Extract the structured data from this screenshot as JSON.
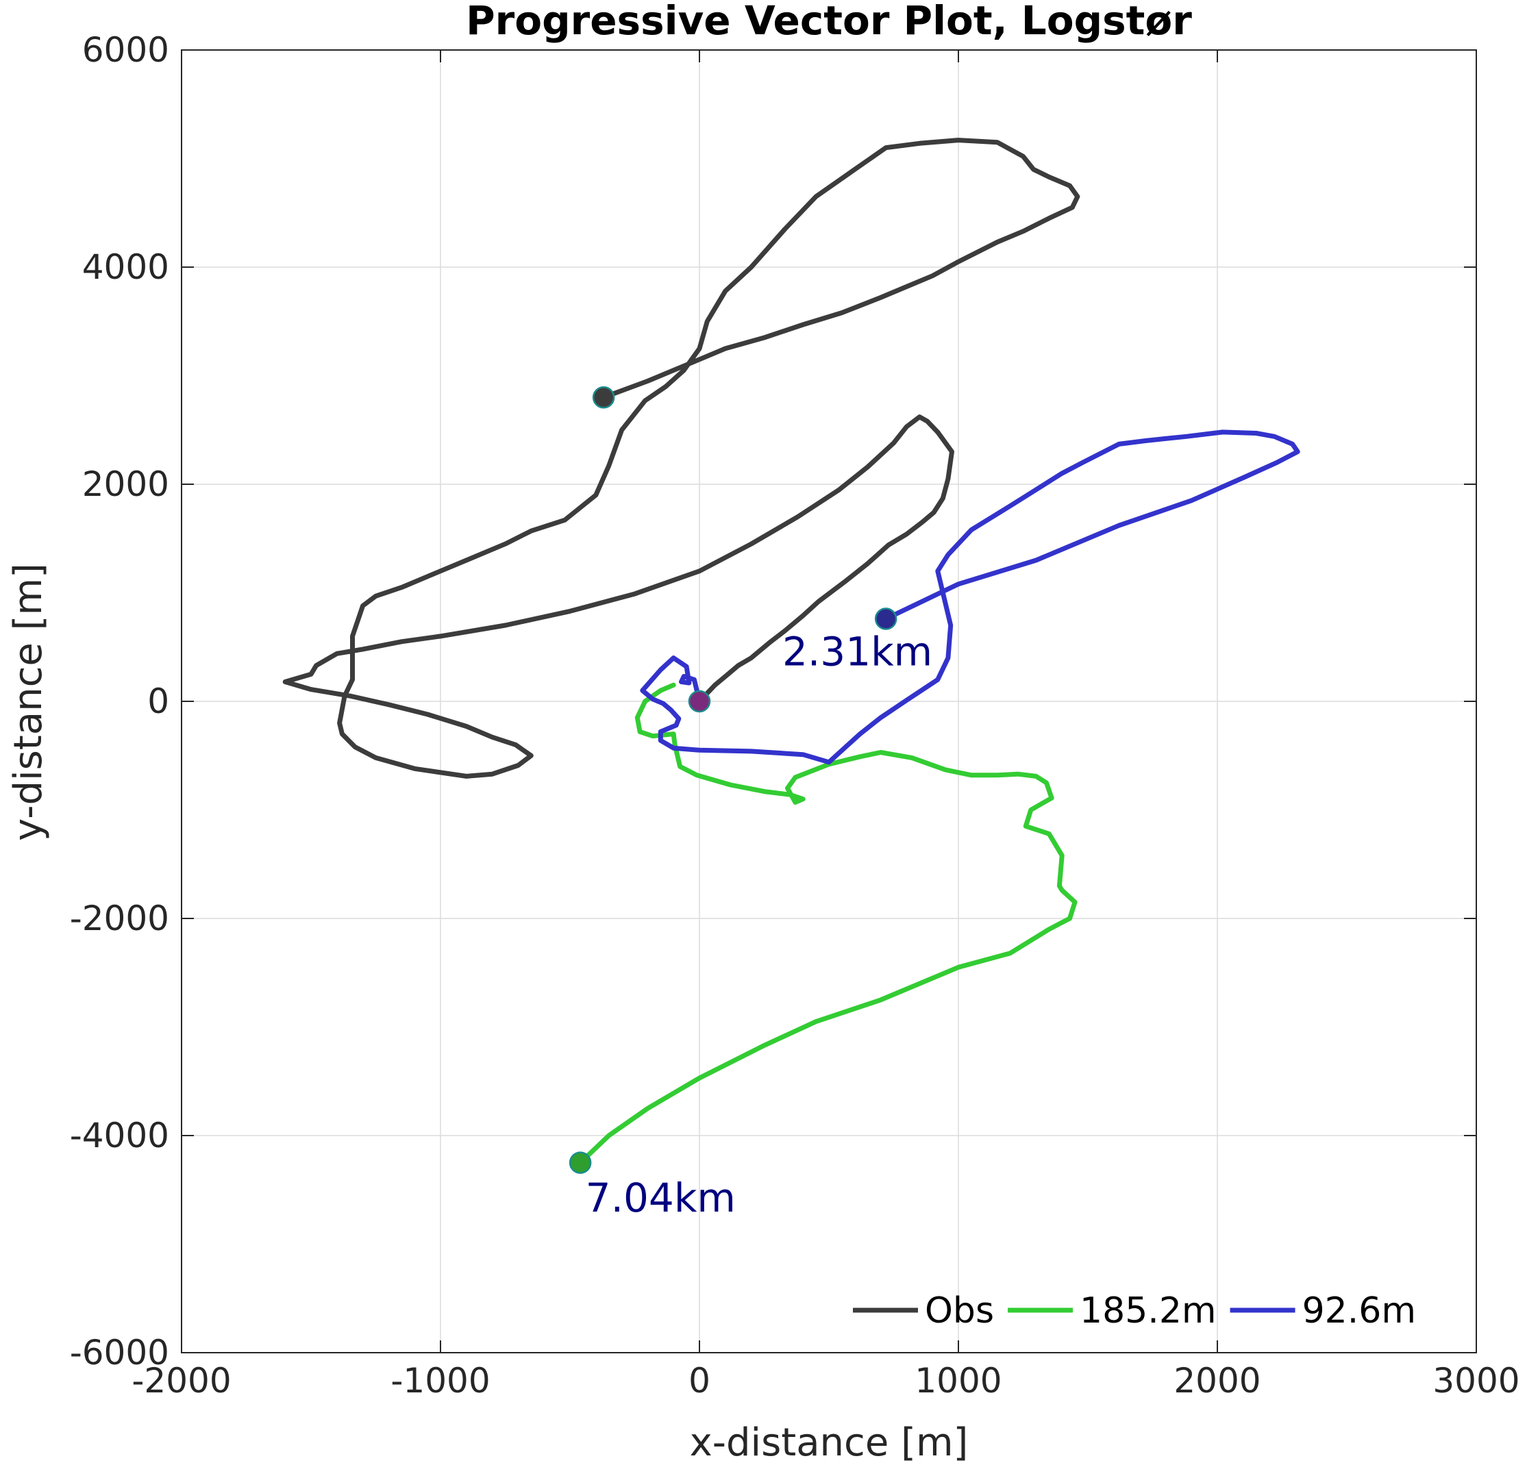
{
  "chart_data": {
    "type": "line",
    "title": "Progressive Vector Plot, Logstør",
    "xlabel": "x-distance [m]",
    "ylabel": "y-distance [m]",
    "xlim": [
      -2000,
      3000
    ],
    "ylim": [
      -6000,
      6000
    ],
    "xticks": [
      -2000,
      -1000,
      0,
      1000,
      2000,
      3000
    ],
    "yticks": [
      -6000,
      -4000,
      -2000,
      0,
      2000,
      4000,
      6000
    ],
    "xtick_labels": [
      "-2000",
      "-1000",
      "0",
      "1000",
      "2000",
      "3000"
    ],
    "ytick_labels": [
      "-6000",
      "-4000",
      "-2000",
      "0",
      "2000",
      "4000",
      "6000"
    ],
    "grid": true,
    "legend": {
      "placement": "bottom-right",
      "orientation": "horizontal"
    },
    "origin_marker": {
      "x": 0,
      "y": 0,
      "color": "#7b2b7b"
    },
    "series": [
      {
        "name": "Obs",
        "color": "#3c3c3c",
        "end_marker_color": "#3c3c3c",
        "x": [
          0,
          60,
          110,
          150,
          200,
          270,
          330,
          400,
          460,
          560,
          650,
          730,
          800,
          860,
          905,
          940,
          960,
          975,
          920,
          880,
          850,
          800,
          750,
          650,
          540,
          380,
          200,
          0,
          -250,
          -500,
          -750,
          -1000,
          -1150,
          -1300,
          -1400,
          -1480,
          -1500,
          -1600,
          -1500,
          -1350,
          -1200,
          -1050,
          -900,
          -800,
          -710,
          -650,
          -700,
          -800,
          -900,
          -1100,
          -1250,
          -1330,
          -1380,
          -1390,
          -1370,
          -1340,
          -1340,
          -1300,
          -1250,
          -1150,
          -1050,
          -900,
          -750,
          -650,
          -520,
          -400,
          -350,
          -300,
          -210,
          -130,
          -60,
          0,
          30,
          100,
          200,
          330,
          450,
          600,
          720,
          850,
          1000,
          1150,
          1250,
          1290,
          1350,
          1430,
          1460,
          1440,
          1350,
          1250,
          1150,
          1000,
          900,
          800,
          700,
          550,
          400,
          250,
          100,
          -50,
          -200,
          -370
        ],
        "y": [
          0,
          150,
          250,
          330,
          400,
          540,
          650,
          790,
          920,
          1100,
          1270,
          1440,
          1540,
          1650,
          1740,
          1870,
          2050,
          2300,
          2480,
          2580,
          2620,
          2530,
          2380,
          2160,
          1950,
          1700,
          1450,
          1200,
          990,
          830,
          700,
          600,
          550,
          480,
          440,
          330,
          250,
          180,
          110,
          50,
          -30,
          -120,
          -230,
          -330,
          -400,
          -500,
          -590,
          -670,
          -690,
          -620,
          -520,
          -420,
          -300,
          -200,
          50,
          200,
          600,
          880,
          970,
          1050,
          1150,
          1300,
          1450,
          1570,
          1670,
          1900,
          2170,
          2500,
          2770,
          2900,
          3050,
          3250,
          3500,
          3780,
          4000,
          4350,
          4650,
          4900,
          5100,
          5140,
          5170,
          5150,
          5020,
          4900,
          4830,
          4750,
          4650,
          4550,
          4450,
          4330,
          4230,
          4050,
          3920,
          3820,
          3720,
          3580,
          3470,
          3350,
          3250,
          3100,
          2950,
          2800
        ]
      },
      {
        "name": "185.2m",
        "color": "#33cc33",
        "end_marker_color": "#2e9e2e",
        "x": [
          -100,
          -150,
          -210,
          -240,
          -230,
          -180,
          -100,
          -95,
          -75,
          -10,
          120,
          250,
          350,
          400,
          370,
          340,
          370,
          500,
          620,
          700,
          820,
          950,
          1050,
          1150,
          1230,
          1300,
          1340,
          1360,
          1280,
          1260,
          1350,
          1400,
          1390,
          1400,
          1450,
          1430,
          1350,
          1200,
          1000,
          700,
          450,
          250,
          0,
          -200,
          -350,
          -460
        ],
        "y": [
          150,
          100,
          0,
          -150,
          -280,
          -320,
          -300,
          -400,
          -600,
          -680,
          -770,
          -830,
          -860,
          -900,
          -930,
          -800,
          -700,
          -580,
          -510,
          -470,
          -520,
          -630,
          -680,
          -680,
          -670,
          -690,
          -750,
          -890,
          -1000,
          -1150,
          -1220,
          -1420,
          -1700,
          -1740,
          -1850,
          -2000,
          -2100,
          -2320,
          -2450,
          -2750,
          -2950,
          -3170,
          -3470,
          -3750,
          -4000,
          -4250
        ]
      },
      {
        "name": "92.6m",
        "color": "#3333cc",
        "end_marker_color": "#2a2a8f",
        "x": [
          0,
          -20,
          -60,
          -70,
          -40,
          -50,
          -100,
          -150,
          -220,
          -180,
          -140,
          -110,
          -80,
          -90,
          -150,
          -150,
          -100,
          0,
          200,
          400,
          500,
          560,
          620,
          700,
          800,
          920,
          960,
          970,
          920,
          960,
          1050,
          1200,
          1300,
          1400,
          1480,
          1620,
          1720,
          1800,
          1880,
          2020,
          2150,
          2220,
          2290,
          2310,
          2230,
          2100,
          1900,
          1620,
          1300,
          1000,
          720
        ],
        "y": [
          0,
          200,
          230,
          180,
          170,
          320,
          400,
          290,
          100,
          20,
          -20,
          -80,
          -160,
          -220,
          -280,
          -360,
          -430,
          -450,
          -460,
          -490,
          -560,
          -430,
          -300,
          -150,
          10,
          200,
          400,
          700,
          1200,
          1350,
          1580,
          1800,
          1950,
          2100,
          2200,
          2370,
          2400,
          2420,
          2440,
          2480,
          2470,
          2440,
          2370,
          2300,
          2200,
          2060,
          1850,
          1620,
          1300,
          1080,
          760
        ]
      }
    ],
    "annotations": [
      {
        "text": "2.31km",
        "x": 320,
        "y": 330
      },
      {
        "text": "7.04km",
        "x": -440,
        "y": -4700
      }
    ]
  }
}
